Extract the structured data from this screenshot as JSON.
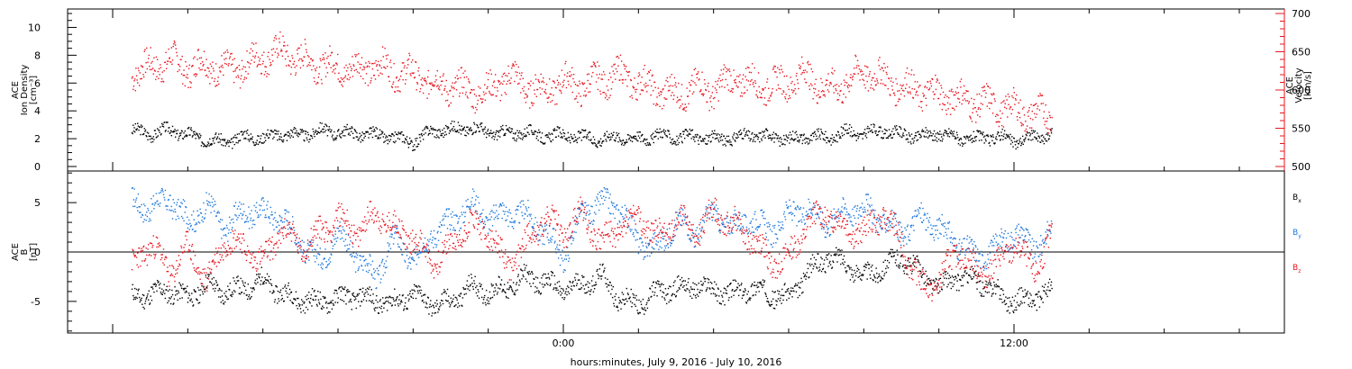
{
  "chart_data": [
    {
      "type": "scatter",
      "panel": "top",
      "ylabel_left_lines": [
        "ACE",
        "Ion Density",
        "[cm⁻³]"
      ],
      "ylabel_right_lines": [
        "ACE",
        "Velocity",
        "[km/s]"
      ],
      "ylim": [
        0,
        11
      ],
      "y_ticks": [
        0,
        2,
        4,
        6,
        8,
        10
      ],
      "y2lim": [
        500,
        700
      ],
      "y2_ticks": [
        500,
        550,
        600,
        650,
        700
      ],
      "series": [
        {
          "color": "#000000",
          "axis": "left",
          "x_hours": [
            -11.5,
            -11,
            -10.5,
            -10,
            -9.5,
            -9,
            -8.5,
            -8,
            -7.5,
            -7,
            -6.5,
            -6,
            -5.5,
            -5,
            -4.5,
            -4,
            -3.5,
            -3,
            -2.5,
            -2,
            -1.5,
            -1,
            -0.5,
            0,
            0.5,
            1,
            1.5,
            2,
            2.5,
            3,
            3.5,
            4,
            4.5,
            5,
            5.5,
            6,
            6.5,
            7,
            7.5,
            8,
            8.5,
            9,
            9.5,
            10,
            10.5,
            11,
            11.5,
            12,
            12.5,
            13
          ],
          "values": [
            2.6,
            2.4,
            2.7,
            2.3,
            2.0,
            1.8,
            2.2,
            2.1,
            2.4,
            2.3,
            2.6,
            2.5,
            2.4,
            2.3,
            2.1,
            1.8,
            2.6,
            2.7,
            2.8,
            2.5,
            2.4,
            2.5,
            2.2,
            2.3,
            2.1,
            2.0,
            2.2,
            2.0,
            2.3,
            2.1,
            2.2,
            2.0,
            2.1,
            2.3,
            2.2,
            2.0,
            2.2,
            2.1,
            2.5,
            2.4,
            2.6,
            2.3,
            2.2,
            2.4,
            2.1,
            2.0,
            2.2,
            1.9,
            2.1,
            2.3
          ]
        },
        {
          "color": "#e8141e",
          "axis": "right",
          "x_hours": [
            -11.5,
            -11,
            -10.5,
            -10,
            -9.5,
            -9,
            -8.5,
            -8,
            -7.5,
            -7,
            -6.5,
            -6,
            -5.5,
            -5,
            -4.5,
            -4,
            -3.5,
            -3,
            -2.5,
            -2,
            -1.5,
            -1,
            -0.5,
            0,
            0.5,
            1,
            1.5,
            2,
            2.5,
            3,
            3.5,
            4,
            4.5,
            5,
            5.5,
            6,
            6.5,
            7,
            7.5,
            8,
            8.5,
            9,
            9.5,
            10,
            10.5,
            11,
            11.5,
            12,
            12.5,
            13
          ],
          "values": [
            625,
            630,
            640,
            628,
            635,
            625,
            632,
            645,
            650,
            640,
            635,
            630,
            628,
            632,
            625,
            620,
            610,
            605,
            600,
            598,
            620,
            605,
            600,
            612,
            605,
            615,
            620,
            610,
            600,
            595,
            605,
            600,
            615,
            610,
            605,
            612,
            620,
            600,
            610,
            625,
            615,
            605,
            600,
            595,
            590,
            585,
            580,
            575,
            570,
            568
          ]
        }
      ]
    },
    {
      "type": "scatter",
      "panel": "bottom",
      "ylabel_lines": [
        "ACE",
        "B",
        "[nT]"
      ],
      "ylim": [
        -8.2,
        8.2
      ],
      "y_ticks": [
        -5,
        0,
        5
      ],
      "legend": [
        {
          "text": "B",
          "sub": "x",
          "color": "#000000"
        },
        {
          "text": "B",
          "sub": "y",
          "color": "#1e78dc"
        },
        {
          "text": "B",
          "sub": "z",
          "color": "#e8141e"
        }
      ],
      "series": [
        {
          "color": "#000000",
          "x_hours": [
            -11.5,
            -11,
            -10.5,
            -10,
            -9.5,
            -9,
            -8.5,
            -8,
            -7.5,
            -7,
            -6.5,
            -6,
            -5.5,
            -5,
            -4.5,
            -4,
            -3.5,
            -3,
            -2.5,
            -2,
            -1.5,
            -1,
            -0.5,
            0,
            0.5,
            1,
            1.5,
            2,
            2.5,
            3,
            3.5,
            4,
            4.5,
            5,
            5.5,
            6,
            6.5,
            7,
            7.5,
            8,
            8.5,
            9,
            9.5,
            10,
            10.5,
            11,
            11.5,
            12,
            12.5,
            13
          ],
          "values": [
            -4.5,
            -4.2,
            -3.8,
            -4.6,
            -3.2,
            -4.0,
            -3.6,
            -2.8,
            -4.2,
            -4.8,
            -5.0,
            -4.6,
            -4.4,
            -4.9,
            -5.1,
            -4.2,
            -5.3,
            -5.0,
            -3.5,
            -4.0,
            -3.6,
            -2.5,
            -3.0,
            -3.8,
            -3.2,
            -2.4,
            -4.8,
            -5.2,
            -4.0,
            -3.6,
            -3.4,
            -3.8,
            -4.2,
            -3.6,
            -4.2,
            -4.6,
            -2.0,
            -0.5,
            -1.0,
            -2.5,
            -1.5,
            -0.5,
            -2.0,
            -3.5,
            -2.5,
            -2.8,
            -4.0,
            -5.0,
            -4.6,
            -4.0
          ]
        },
        {
          "color": "#1e78dc",
          "x_hours": [
            -11.5,
            -11,
            -10.5,
            -10,
            -9.5,
            -9,
            -8.5,
            -8,
            -7.5,
            -7,
            -6.5,
            -6,
            -5.5,
            -5,
            -4.5,
            -4,
            -3.5,
            -3,
            -2.5,
            -2,
            -1.5,
            -1,
            -0.5,
            0,
            0.5,
            1,
            1.5,
            2,
            2.5,
            3,
            3.5,
            4,
            4.5,
            5,
            5.5,
            6,
            6.5,
            7,
            7.5,
            8,
            8.5,
            9,
            9.5,
            10,
            10.5,
            11,
            11.5,
            12,
            12.5,
            13
          ],
          "values": [
            5.0,
            4.5,
            5.5,
            3.0,
            4.8,
            2.5,
            4.2,
            4.0,
            3.6,
            1.0,
            -1.0,
            2.0,
            -0.5,
            -2.5,
            1.5,
            -1.0,
            2.0,
            3.0,
            5.0,
            3.5,
            4.0,
            3.8,
            2.0,
            -0.5,
            4.0,
            5.0,
            4.5,
            1.0,
            0.5,
            3.2,
            2.0,
            4.0,
            2.5,
            3.5,
            2.0,
            3.8,
            4.5,
            3.0,
            4.2,
            4.5,
            3.2,
            2.0,
            3.5,
            2.5,
            1.0,
            -0.5,
            0.5,
            2.2,
            0.5,
            2.0
          ]
        },
        {
          "color": "#e8141e",
          "x_hours": [
            -11.5,
            -11,
            -10.5,
            -10,
            -9.5,
            -9,
            -8.5,
            -8,
            -7.5,
            -7,
            -6.5,
            -6,
            -5.5,
            -5,
            -4.5,
            -4,
            -3.5,
            -3,
            -2.5,
            -2,
            -1.5,
            -1,
            -0.5,
            0,
            0.5,
            1,
            1.5,
            2,
            2.5,
            3,
            3.5,
            4,
            4.5,
            5,
            5.5,
            6,
            6.5,
            7,
            7.5,
            8,
            8.5,
            9,
            9.5,
            10,
            10.5,
            11,
            11.5,
            12,
            12.5,
            13
          ],
          "values": [
            -1.5,
            1.0,
            -2.0,
            0.5,
            -3.0,
            1.5,
            0.5,
            -1.0,
            2.5,
            0.5,
            2.0,
            3.5,
            2.0,
            4.0,
            2.5,
            1.5,
            -1.0,
            0.5,
            3.0,
            2.0,
            -1.5,
            1.0,
            3.5,
            2.0,
            4.0,
            1.0,
            2.5,
            3.5,
            1.5,
            3.5,
            2.0,
            4.2,
            3.0,
            1.5,
            -1.0,
            -0.5,
            3.0,
            4.0,
            2.5,
            2.0,
            4.0,
            1.0,
            -3.5,
            -3.0,
            0.5,
            -2.0,
            -1.5,
            1.0,
            -2.0,
            1.5
          ]
        }
      ]
    }
  ],
  "x_axis": {
    "range_hours": [
      -13.2,
      19.2
    ],
    "ticks": [
      {
        "hours": 0,
        "label": "0:00"
      },
      {
        "hours": 12,
        "label": "12:00"
      }
    ],
    "title": "hours:minutes, July  9, 2016 - July 10, 2016"
  }
}
